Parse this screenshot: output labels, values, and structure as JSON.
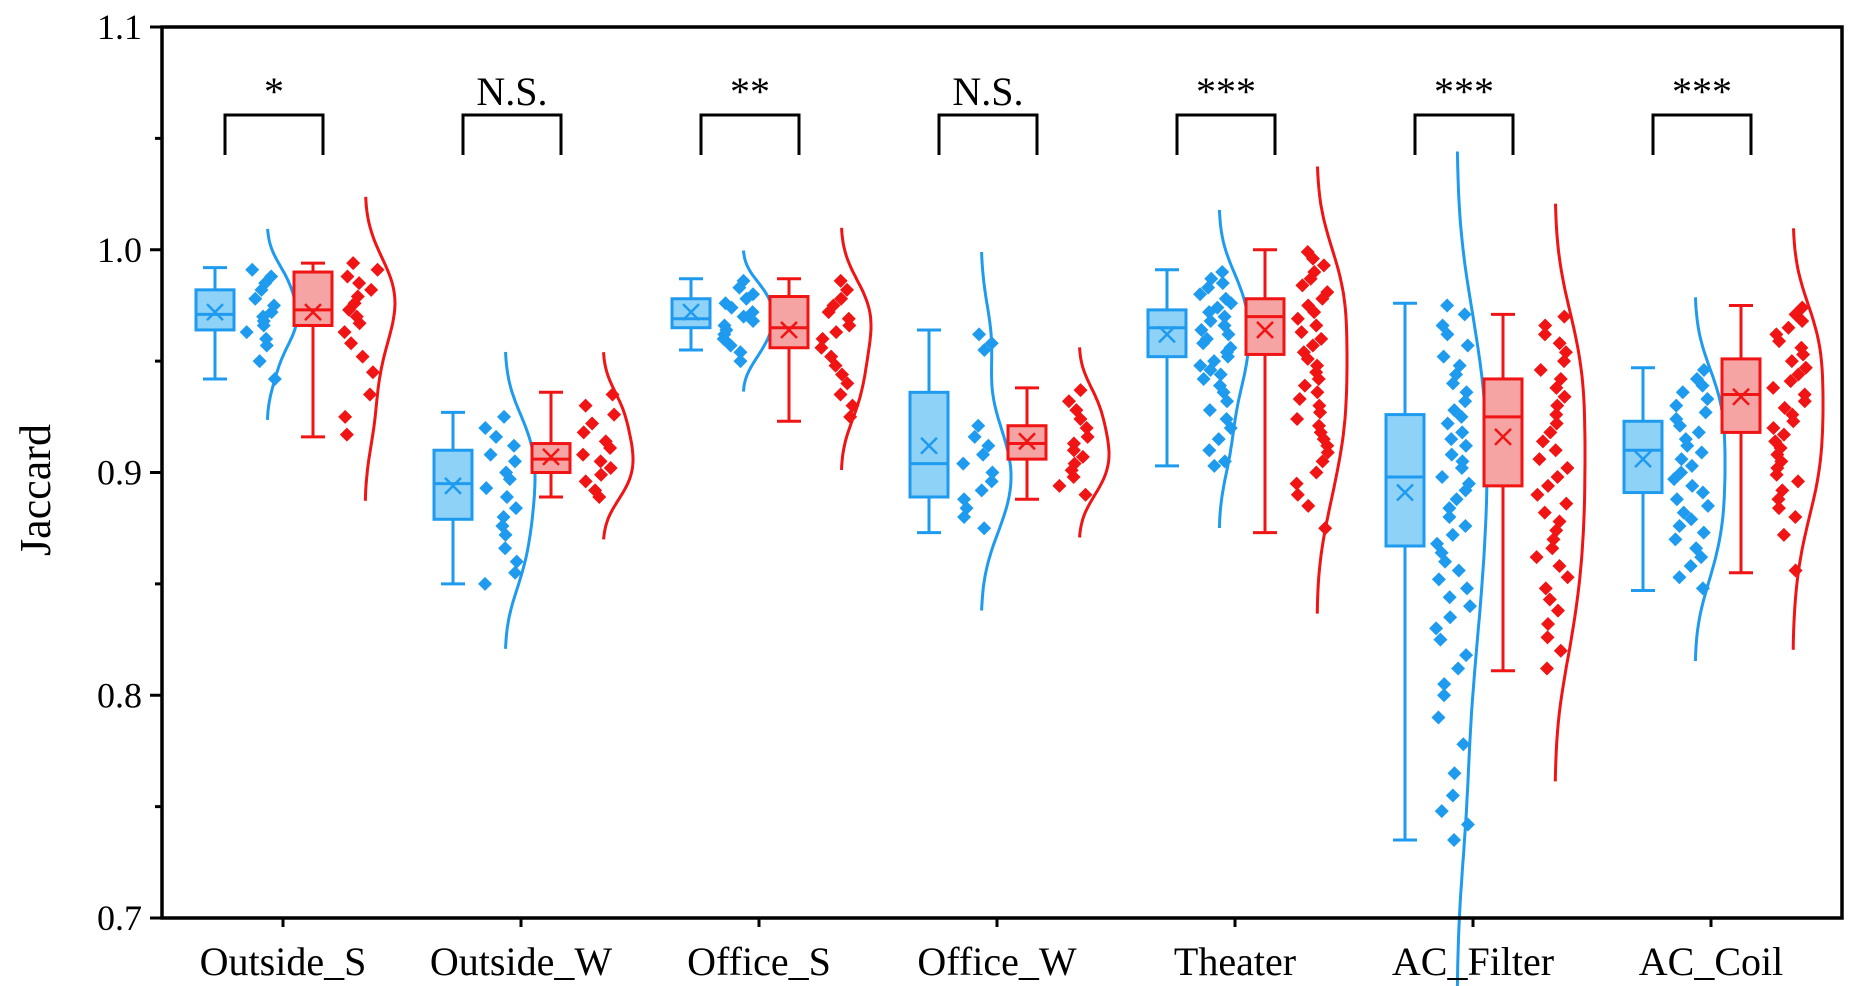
{
  "chart_data": {
    "type": "box",
    "title": "",
    "xlabel": "",
    "ylabel": "Jaccard",
    "ylim": [
      0.7,
      1.1
    ],
    "yticks": [
      "0.7",
      "0.8",
      "0.9",
      "1.0",
      "1.1"
    ],
    "categories": [
      "Outside_S",
      "Outside_W",
      "Office_S",
      "Office_W",
      "Theater",
      "AC_Filter",
      "AC_Coil"
    ],
    "significance": [
      "*",
      "N.S.",
      "**",
      "N.S.",
      "***",
      "***",
      "***"
    ],
    "colors": {
      "blue_edge": "#1e9bef",
      "blue_fill": "#8fd2f7",
      "red_edge": "#f01414",
      "red_fill": "#f6a3a3"
    },
    "series": [
      {
        "name": "blue",
        "boxes": [
          {
            "min": 0.942,
            "q1": 0.964,
            "median": 0.971,
            "q3": 0.982,
            "max": 0.992,
            "mean": 0.972
          },
          {
            "min": 0.85,
            "q1": 0.879,
            "median": 0.895,
            "q3": 0.91,
            "max": 0.927,
            "mean": 0.894
          },
          {
            "min": 0.955,
            "q1": 0.965,
            "median": 0.969,
            "q3": 0.978,
            "max": 0.987,
            "mean": 0.972
          },
          {
            "min": 0.873,
            "q1": 0.889,
            "median": 0.904,
            "q3": 0.936,
            "max": 0.964,
            "mean": 0.912
          },
          {
            "min": 0.903,
            "q1": 0.952,
            "median": 0.965,
            "q3": 0.973,
            "max": 0.991,
            "mean": 0.962
          },
          {
            "min": 0.735,
            "q1": 0.867,
            "median": 0.898,
            "q3": 0.926,
            "max": 0.976,
            "mean": 0.891
          },
          {
            "min": 0.847,
            "q1": 0.891,
            "median": 0.91,
            "q3": 0.923,
            "max": 0.947,
            "mean": 0.906
          }
        ],
        "points": [
          [
            0.991,
            0.988,
            0.985,
            0.982,
            0.978,
            0.975,
            0.972,
            0.97,
            0.968,
            0.966,
            0.963,
            0.96,
            0.957,
            0.95,
            0.942
          ],
          [
            0.925,
            0.92,
            0.916,
            0.912,
            0.908,
            0.905,
            0.9,
            0.897,
            0.893,
            0.889,
            0.884,
            0.88,
            0.876,
            0.872,
            0.866,
            0.86,
            0.855,
            0.85
          ],
          [
            0.986,
            0.983,
            0.98,
            0.978,
            0.976,
            0.974,
            0.972,
            0.97,
            0.968,
            0.966,
            0.964,
            0.962,
            0.96,
            0.957,
            0.954,
            0.95
          ],
          [
            0.962,
            0.958,
            0.955,
            0.921,
            0.916,
            0.912,
            0.908,
            0.904,
            0.9,
            0.896,
            0.892,
            0.888,
            0.884,
            0.88,
            0.875
          ],
          [
            0.99,
            0.987,
            0.985,
            0.983,
            0.98,
            0.978,
            0.976,
            0.974,
            0.972,
            0.97,
            0.968,
            0.966,
            0.964,
            0.962,
            0.96,
            0.958,
            0.956,
            0.954,
            0.952,
            0.95,
            0.948,
            0.946,
            0.944,
            0.942,
            0.939,
            0.936,
            0.932,
            0.928,
            0.924,
            0.92,
            0.915,
            0.91,
            0.905,
            0.903
          ],
          [
            0.975,
            0.971,
            0.966,
            0.962,
            0.957,
            0.952,
            0.948,
            0.944,
            0.94,
            0.936,
            0.932,
            0.928,
            0.925,
            0.922,
            0.918,
            0.915,
            0.912,
            0.908,
            0.905,
            0.902,
            0.898,
            0.895,
            0.892,
            0.888,
            0.884,
            0.88,
            0.876,
            0.872,
            0.868,
            0.864,
            0.86,
            0.856,
            0.852,
            0.848,
            0.844,
            0.84,
            0.835,
            0.83,
            0.825,
            0.818,
            0.812,
            0.805,
            0.8,
            0.79,
            0.778,
            0.765,
            0.755,
            0.748,
            0.742,
            0.735
          ],
          [
            0.946,
            0.942,
            0.939,
            0.936,
            0.933,
            0.93,
            0.927,
            0.924,
            0.921,
            0.918,
            0.915,
            0.912,
            0.909,
            0.906,
            0.903,
            0.9,
            0.897,
            0.894,
            0.891,
            0.888,
            0.885,
            0.882,
            0.879,
            0.876,
            0.873,
            0.87,
            0.866,
            0.862,
            0.858,
            0.853,
            0.848
          ]
        ]
      },
      {
        "name": "red",
        "boxes": [
          {
            "min": 0.916,
            "q1": 0.966,
            "median": 0.973,
            "q3": 0.99,
            "max": 0.994,
            "mean": 0.972
          },
          {
            "min": 0.889,
            "q1": 0.9,
            "median": 0.906,
            "q3": 0.913,
            "max": 0.936,
            "mean": 0.907
          },
          {
            "min": 0.923,
            "q1": 0.956,
            "median": 0.965,
            "q3": 0.979,
            "max": 0.987,
            "mean": 0.964
          },
          {
            "min": 0.888,
            "q1": 0.906,
            "median": 0.913,
            "q3": 0.921,
            "max": 0.938,
            "mean": 0.914
          },
          {
            "min": 0.873,
            "q1": 0.953,
            "median": 0.97,
            "q3": 0.978,
            "max": 1.0,
            "mean": 0.964
          },
          {
            "min": 0.811,
            "q1": 0.894,
            "median": 0.925,
            "q3": 0.942,
            "max": 0.971,
            "mean": 0.916
          },
          {
            "min": 0.855,
            "q1": 0.918,
            "median": 0.935,
            "q3": 0.951,
            "max": 0.975,
            "mean": 0.934
          }
        ],
        "points": [
          [
            0.994,
            0.991,
            0.988,
            0.985,
            0.982,
            0.979,
            0.976,
            0.973,
            0.97,
            0.967,
            0.963,
            0.958,
            0.952,
            0.945,
            0.935,
            0.925,
            0.917
          ],
          [
            0.935,
            0.93,
            0.926,
            0.922,
            0.918,
            0.914,
            0.911,
            0.908,
            0.905,
            0.902,
            0.899,
            0.896,
            0.892,
            0.889
          ],
          [
            0.986,
            0.982,
            0.978,
            0.975,
            0.972,
            0.969,
            0.966,
            0.963,
            0.96,
            0.956,
            0.952,
            0.948,
            0.944,
            0.94,
            0.935,
            0.93,
            0.925
          ],
          [
            0.937,
            0.932,
            0.928,
            0.924,
            0.92,
            0.916,
            0.913,
            0.91,
            0.907,
            0.904,
            0.901,
            0.898,
            0.894,
            0.89
          ],
          [
            0.999,
            0.996,
            0.993,
            0.99,
            0.987,
            0.984,
            0.981,
            0.978,
            0.975,
            0.972,
            0.969,
            0.966,
            0.963,
            0.96,
            0.957,
            0.954,
            0.951,
            0.948,
            0.945,
            0.942,
            0.939,
            0.936,
            0.933,
            0.93,
            0.927,
            0.924,
            0.921,
            0.918,
            0.915,
            0.912,
            0.909,
            0.905,
            0.9,
            0.895,
            0.89,
            0.885,
            0.875
          ],
          [
            0.97,
            0.966,
            0.962,
            0.958,
            0.954,
            0.95,
            0.946,
            0.942,
            0.938,
            0.934,
            0.93,
            0.926,
            0.922,
            0.918,
            0.914,
            0.91,
            0.906,
            0.902,
            0.898,
            0.894,
            0.89,
            0.886,
            0.882,
            0.878,
            0.874,
            0.87,
            0.866,
            0.862,
            0.858,
            0.853,
            0.848,
            0.843,
            0.838,
            0.832,
            0.826,
            0.82,
            0.812
          ],
          [
            0.974,
            0.971,
            0.968,
            0.965,
            0.962,
            0.959,
            0.956,
            0.953,
            0.95,
            0.947,
            0.944,
            0.941,
            0.938,
            0.935,
            0.932,
            0.929,
            0.926,
            0.923,
            0.92,
            0.917,
            0.914,
            0.911,
            0.908,
            0.905,
            0.902,
            0.899,
            0.896,
            0.892,
            0.888,
            0.884,
            0.88,
            0.872,
            0.856
          ]
        ]
      }
    ]
  }
}
